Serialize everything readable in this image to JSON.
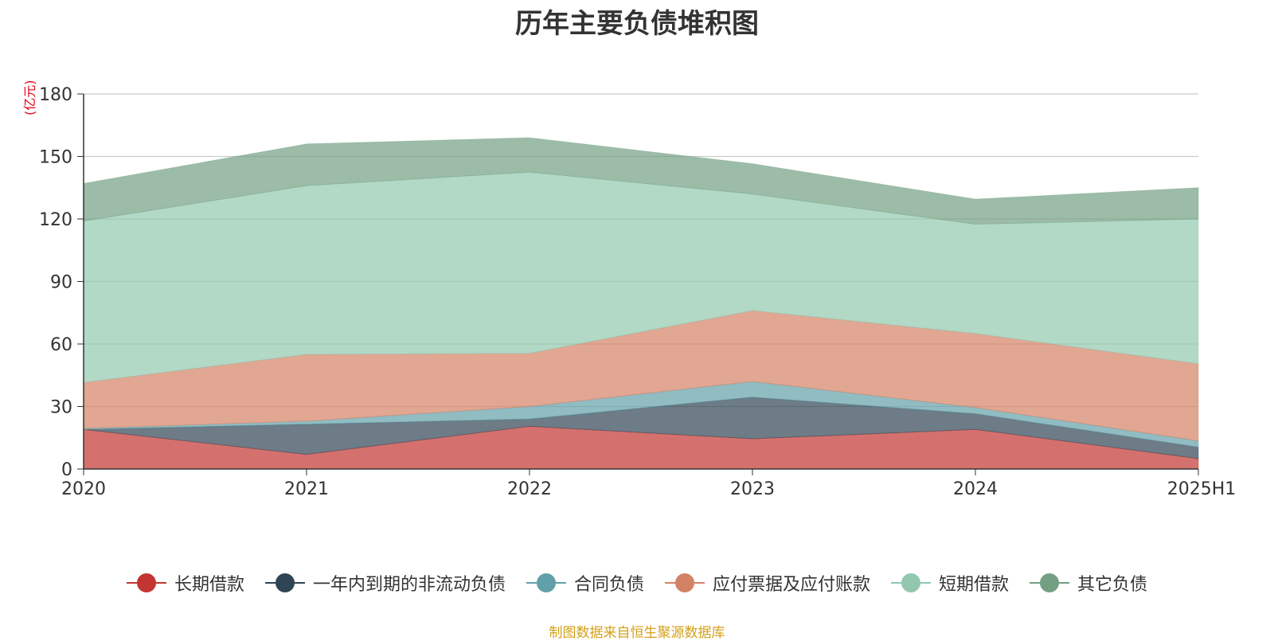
{
  "chart_data": {
    "type": "area",
    "stacked": true,
    "title": "历年主要负债堆积图",
    "unit_label": "(亿元)",
    "categories": [
      "2020",
      "2021",
      "2022",
      "2023",
      "2024",
      "2025H1"
    ],
    "ylim": [
      0,
      180
    ],
    "yticks": [
      0,
      30,
      60,
      90,
      120,
      150,
      180
    ],
    "grid": true,
    "legend_position": "bottom",
    "series": [
      {
        "name": "长期借款",
        "color": "#c23531",
        "values": [
          19,
          7,
          20.5,
          14.5,
          19,
          5
        ]
      },
      {
        "name": "一年内到期的非流动负债",
        "color": "#2f4554",
        "values": [
          0,
          14.5,
          3.5,
          20,
          7.5,
          5.5
        ]
      },
      {
        "name": "合同负债",
        "color": "#61a0a8",
        "values": [
          0.5,
          1.5,
          6,
          7.5,
          3,
          3
        ]
      },
      {
        "name": "应付票据及应付账款",
        "color": "#d48265",
        "values": [
          22,
          32,
          25.5,
          34,
          35.5,
          37
        ]
      },
      {
        "name": "短期借款",
        "color": "#91c7ae",
        "values": [
          77.5,
          81,
          87,
          56,
          52.5,
          69.5
        ]
      },
      {
        "name": "其它负债",
        "color": "#749f83",
        "values": [
          18,
          20,
          16.5,
          14.5,
          12,
          15
        ]
      }
    ]
  },
  "source_note": "制图数据来自恒生聚源数据库"
}
